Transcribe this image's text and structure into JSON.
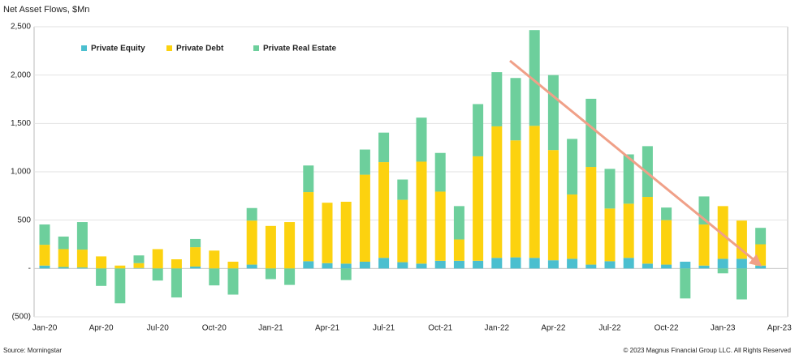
{
  "chart_data": {
    "type": "bar",
    "stacked": true,
    "title": "Net Asset Flows, $Mn",
    "source": "Source: Morningstar",
    "copyright": "© 2023 Magnus Financial Group LLC. All Rights Reserved",
    "categories": [
      "Jan-20",
      null,
      null,
      "Apr-20",
      null,
      null,
      "Jul-20",
      null,
      null,
      "Oct-20",
      null,
      null,
      "Jan-21",
      null,
      null,
      "Apr-21",
      null,
      null,
      "Jul-21",
      null,
      null,
      "Oct-21",
      null,
      null,
      "Jan-22",
      null,
      null,
      "Apr-22",
      null,
      null,
      "Jul-22",
      null,
      null,
      "Oct-22",
      null,
      null,
      "Jan-23",
      null,
      null,
      "Apr-23"
    ],
    "series": [
      {
        "name": "Private Equity",
        "color": "#4bbfcf",
        "values": [
          30,
          15,
          10,
          0,
          0,
          5,
          0,
          0,
          20,
          0,
          0,
          40,
          0,
          0,
          75,
          55,
          50,
          70,
          110,
          65,
          50,
          80,
          80,
          80,
          110,
          115,
          110,
          85,
          100,
          40,
          75,
          110,
          50,
          40,
          70,
          30,
          100,
          100,
          30,
          null
        ]
      },
      {
        "name": "Private Debt",
        "color": "#fcd20f",
        "values": [
          215,
          185,
          185,
          125,
          30,
          50,
          200,
          95,
          200,
          185,
          70,
          455,
          440,
          480,
          715,
          625,
          640,
          900,
          990,
          645,
          1055,
          715,
          220,
          1080,
          1360,
          1210,
          1365,
          1140,
          665,
          1010,
          545,
          560,
          690,
          460,
          0,
          425,
          545,
          395,
          220,
          null
        ]
      },
      {
        "name": "Private Real Estate",
        "color": "#6dcf9c",
        "values": [
          210,
          130,
          285,
          -180,
          -360,
          80,
          -125,
          -300,
          85,
          -175,
          -270,
          130,
          -110,
          -170,
          275,
          0,
          -120,
          260,
          305,
          210,
          455,
          400,
          345,
          540,
          560,
          645,
          990,
          775,
          575,
          705,
          410,
          510,
          525,
          130,
          -310,
          290,
          -50,
          -320,
          170,
          null
        ]
      }
    ],
    "ylim": [
      -500,
      2500
    ],
    "yticks": [
      {
        "value": -500,
        "label": "(500)"
      },
      {
        "value": 0,
        "label": "-"
      },
      {
        "value": 500,
        "label": "500"
      },
      {
        "value": 1000,
        "label": "1,000"
      },
      {
        "value": 1500,
        "label": "1,500"
      },
      {
        "value": 2000,
        "label": "2,000"
      },
      {
        "value": 2500,
        "label": "2,500"
      }
    ],
    "grid": true,
    "legend": "top-left"
  }
}
